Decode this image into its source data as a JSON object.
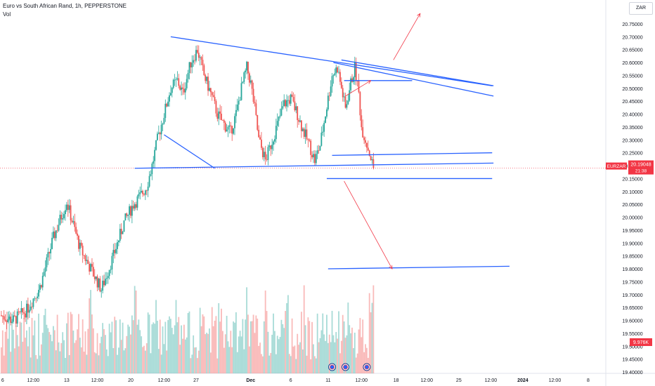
{
  "header": {
    "title": "Euro vs South African Rand, 1h, PEPPERSTONE",
    "volume_label": "Vol"
  },
  "currency_button": "ZAR",
  "price_badge": {
    "symbol": "EURZAR",
    "price": "20.19048",
    "countdown": "21:38",
    "value": 20.19048,
    "color": "#f23645"
  },
  "volume_badge": {
    "label": "9.976K",
    "color": "#f23645"
  },
  "colors": {
    "up": "#26a69a",
    "down": "#ef5350",
    "lines": "#2962ff",
    "arrows": "#f23645"
  },
  "chart_data": {
    "type": "candlestick",
    "y_axis": {
      "range": [
        19.39,
        20.79
      ],
      "ticks": [
        "20.75000",
        "20.70000",
        "20.65000",
        "20.60000",
        "20.55000",
        "20.50000",
        "20.45000",
        "20.40000",
        "20.35000",
        "20.30000",
        "20.25000",
        "20.20000",
        "20.15000",
        "20.10000",
        "20.05000",
        "20.00000",
        "19.95000",
        "19.90000",
        "19.85000",
        "19.80000",
        "19.75000",
        "19.70000",
        "19.65000",
        "19.60000",
        "19.55000",
        "19.50000",
        "19.45000",
        "19.40000"
      ]
    },
    "x_axis": {
      "ticks": [
        "6",
        "12:00",
        "13",
        "12:00",
        "20",
        "12:00",
        "27",
        "Dec",
        "6",
        "11",
        "12:00",
        "18",
        "12:00",
        "25",
        "12:00",
        "2024",
        "12:00",
        "8"
      ],
      "tick_positions": [
        0.2,
        2.5,
        5,
        7.3,
        9.8,
        12.3,
        14.7,
        18.8,
        21.8,
        24.6,
        27.1,
        29.7,
        32,
        34.4,
        36.8,
        39.2,
        41.6,
        44.1
      ]
    },
    "price_path": [
      {
        "t": 0,
        "p": 19.62
      },
      {
        "t": 1,
        "p": 19.6
      },
      {
        "t": 2,
        "p": 19.64
      },
      {
        "t": 3,
        "p": 19.73
      },
      {
        "t": 4,
        "p": 19.92
      },
      {
        "t": 5,
        "p": 20.06
      },
      {
        "t": 6,
        "p": 19.88
      },
      {
        "t": 7,
        "p": 19.78
      },
      {
        "t": 7.6,
        "p": 19.72
      },
      {
        "t": 8.5,
        "p": 19.85
      },
      {
        "t": 9.3,
        "p": 19.98
      },
      {
        "t": 10,
        "p": 20.05
      },
      {
        "t": 10.5,
        "p": 20.08
      },
      {
        "t": 11,
        "p": 20.12
      },
      {
        "t": 11.4,
        "p": 20.2
      },
      {
        "t": 11.8,
        "p": 20.3
      },
      {
        "t": 12.2,
        "p": 20.38
      },
      {
        "t": 12.8,
        "p": 20.5
      },
      {
        "t": 13.3,
        "p": 20.53
      },
      {
        "t": 13.7,
        "p": 20.48
      },
      {
        "t": 14.3,
        "p": 20.6
      },
      {
        "t": 14.8,
        "p": 20.65
      },
      {
        "t": 15.3,
        "p": 20.55
      },
      {
        "t": 15.8,
        "p": 20.48
      },
      {
        "t": 16.3,
        "p": 20.4
      },
      {
        "t": 16.8,
        "p": 20.36
      },
      {
        "t": 17.3,
        "p": 20.33
      },
      {
        "t": 17.7,
        "p": 20.4
      },
      {
        "t": 18.1,
        "p": 20.5
      },
      {
        "t": 18.5,
        "p": 20.58
      },
      {
        "t": 18.8,
        "p": 20.52
      },
      {
        "t": 19.1,
        "p": 20.42
      },
      {
        "t": 19.4,
        "p": 20.3
      },
      {
        "t": 19.9,
        "p": 20.22
      },
      {
        "t": 20.3,
        "p": 20.28
      },
      {
        "t": 20.8,
        "p": 20.36
      },
      {
        "t": 21.3,
        "p": 20.44
      },
      {
        "t": 21.8,
        "p": 20.46
      },
      {
        "t": 22.3,
        "p": 20.4
      },
      {
        "t": 22.7,
        "p": 20.34
      },
      {
        "t": 23.2,
        "p": 20.28
      },
      {
        "t": 23.6,
        "p": 20.22
      },
      {
        "t": 24.0,
        "p": 20.28
      },
      {
        "t": 24.4,
        "p": 20.4
      },
      {
        "t": 24.9,
        "p": 20.55
      },
      {
        "t": 25.3,
        "p": 20.58
      },
      {
        "t": 25.6,
        "p": 20.5
      },
      {
        "t": 25.9,
        "p": 20.42
      },
      {
        "t": 26.3,
        "p": 20.52
      },
      {
        "t": 26.6,
        "p": 20.58
      },
      {
        "t": 26.9,
        "p": 20.48
      },
      {
        "t": 27.1,
        "p": 20.35
      },
      {
        "t": 27.4,
        "p": 20.3
      },
      {
        "t": 27.7,
        "p": 20.25
      },
      {
        "t": 28.0,
        "p": 20.19
      }
    ],
    "projections": [
      {
        "from": [
          27.8,
          20.28
        ],
        "to": [
          31.6,
          20.8
        ]
      },
      {
        "from": [
          29.8,
          20.15
        ],
        "to": [
          33.7,
          19.8
        ]
      }
    ],
    "last_price": 20.19048
  }
}
